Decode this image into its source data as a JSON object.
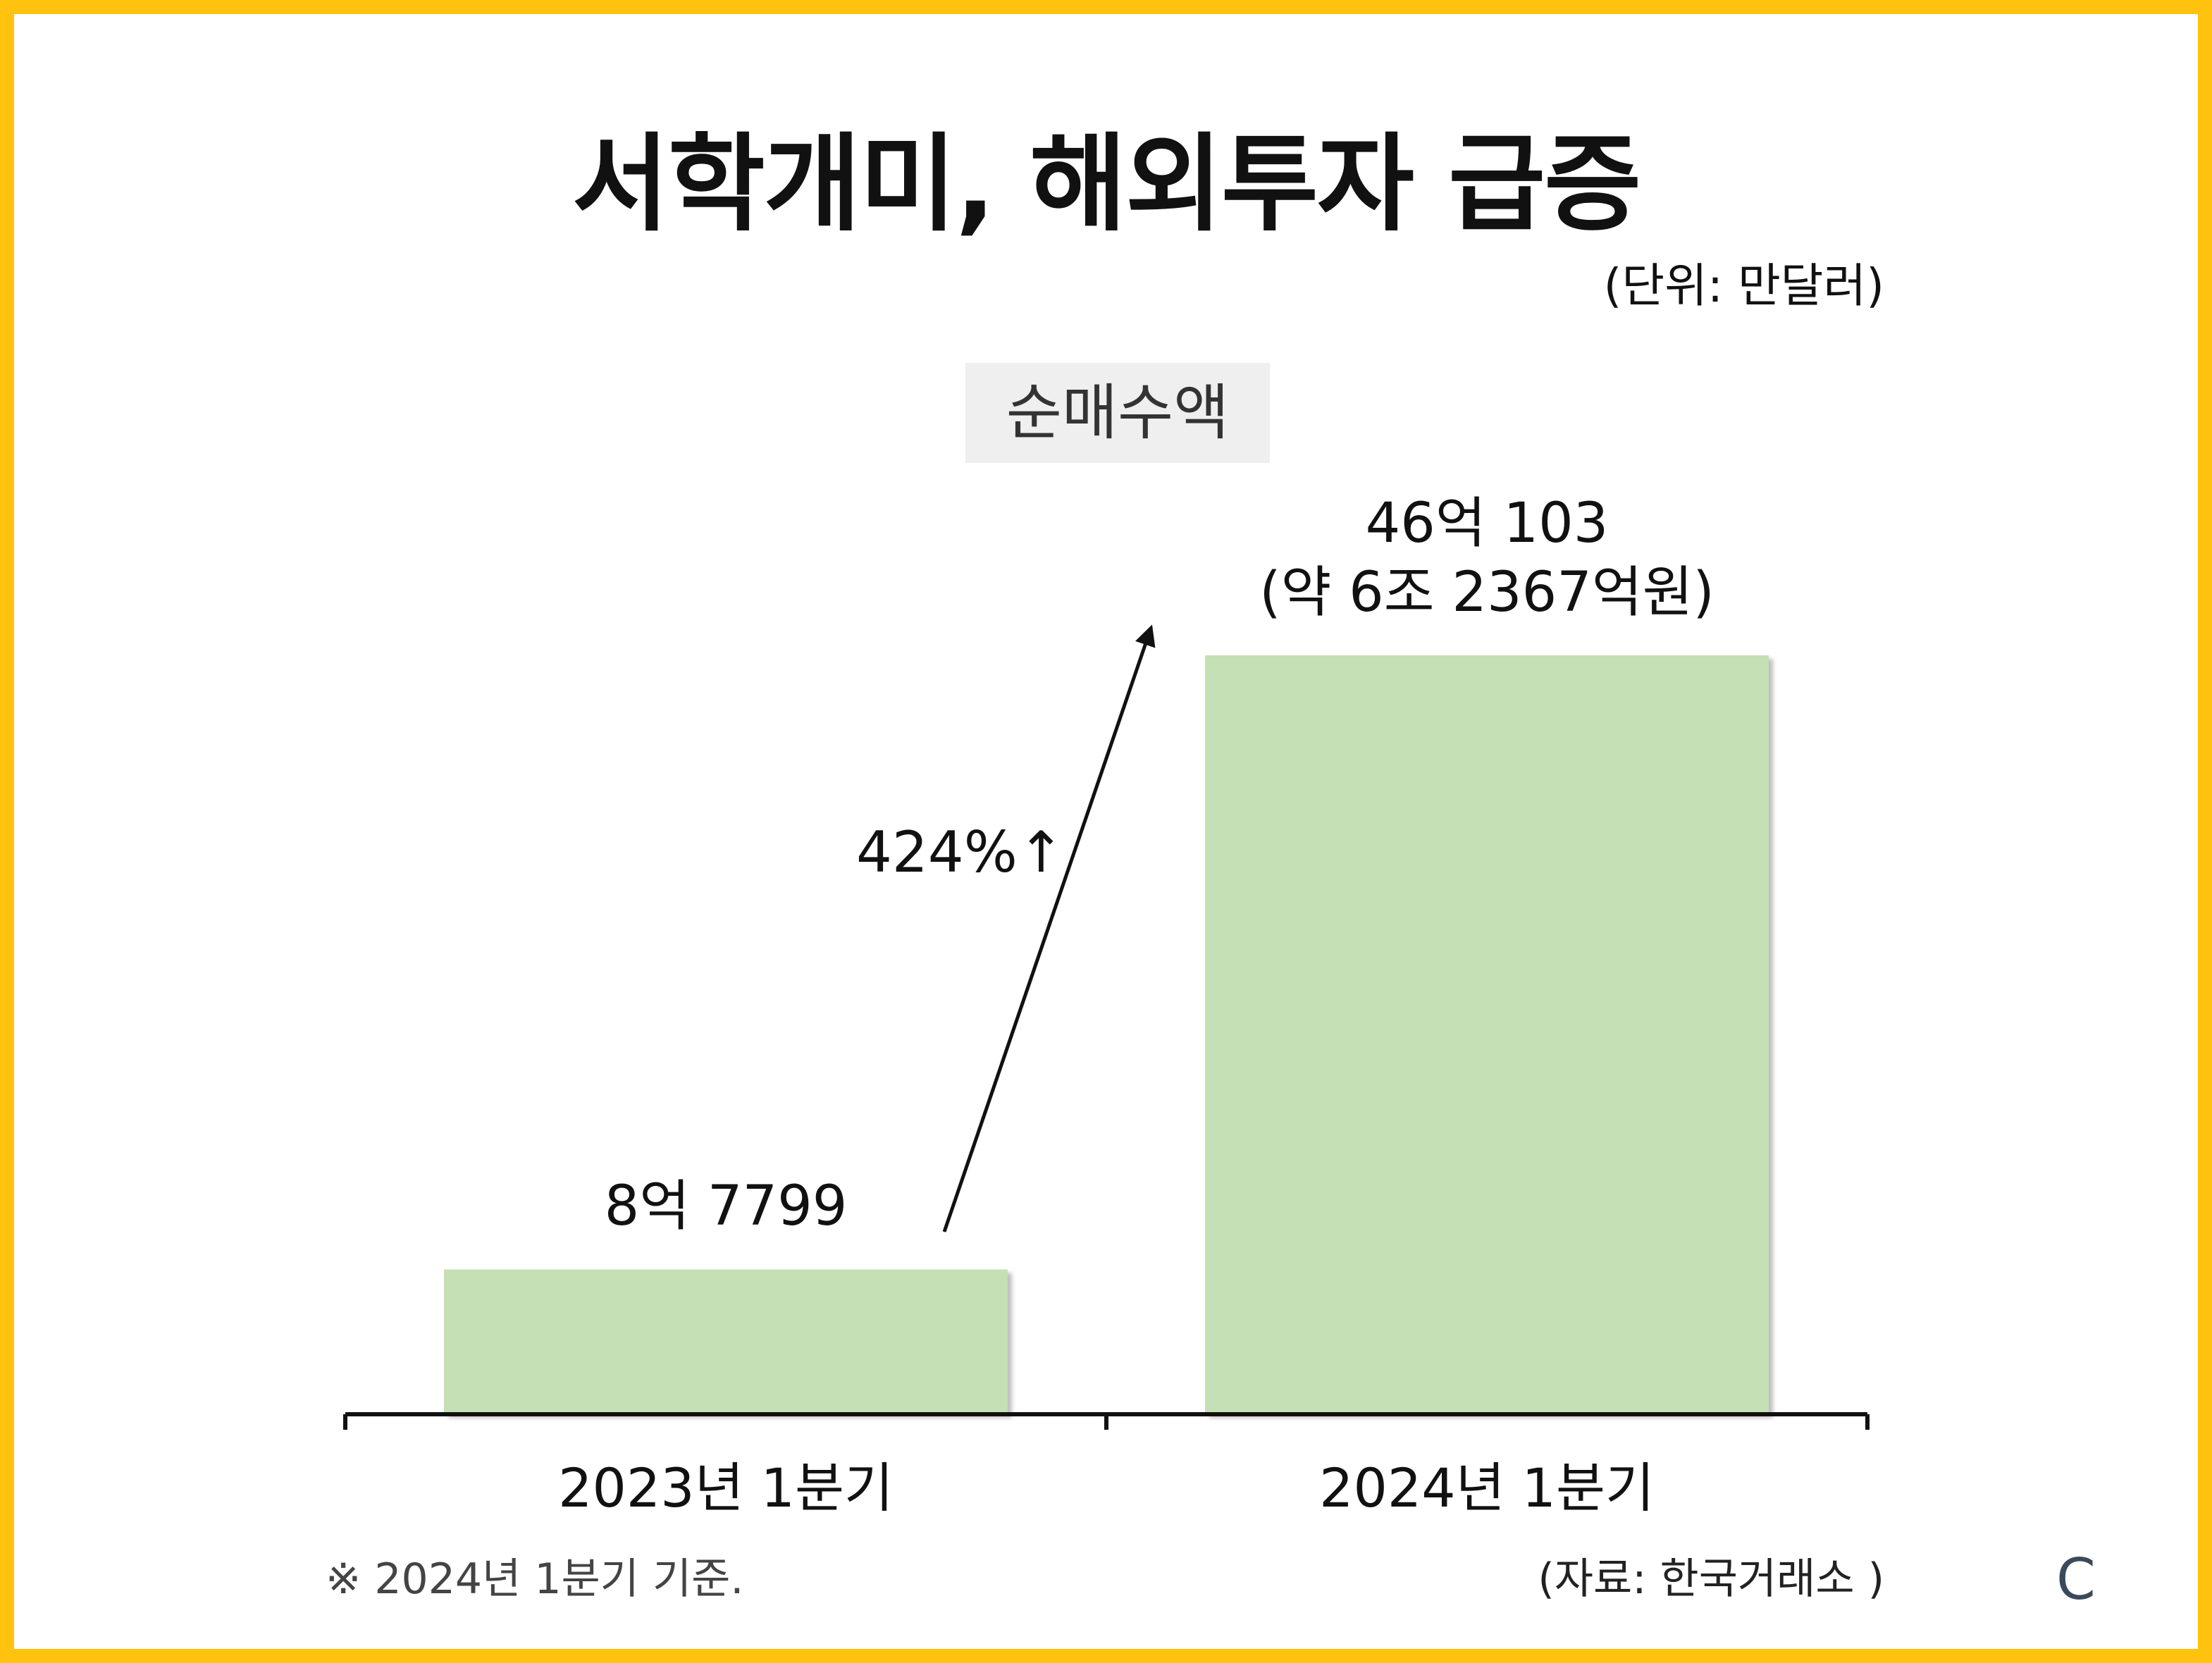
{
  "title": "서학개미, 해외투자 급증",
  "unit_note": "(단위: 만달러)",
  "metric_label": "순매수액",
  "chart_data": {
    "type": "bar",
    "categories": [
      "2023년 1분기",
      "2024년 1분기"
    ],
    "values": [
      87799,
      460103
    ],
    "value_labels": [
      "8억 7799",
      "46억 103"
    ],
    "value_sublabels": [
      "",
      "(약 6조 2367억원)"
    ],
    "annotation": "424%↑",
    "bar_color": "#C5E0B4",
    "axis_color": "#111111"
  },
  "footnote": "※ 2024년 1분기 기준.",
  "source": "(자료: 한국거래소 )",
  "corner_mark": "C"
}
